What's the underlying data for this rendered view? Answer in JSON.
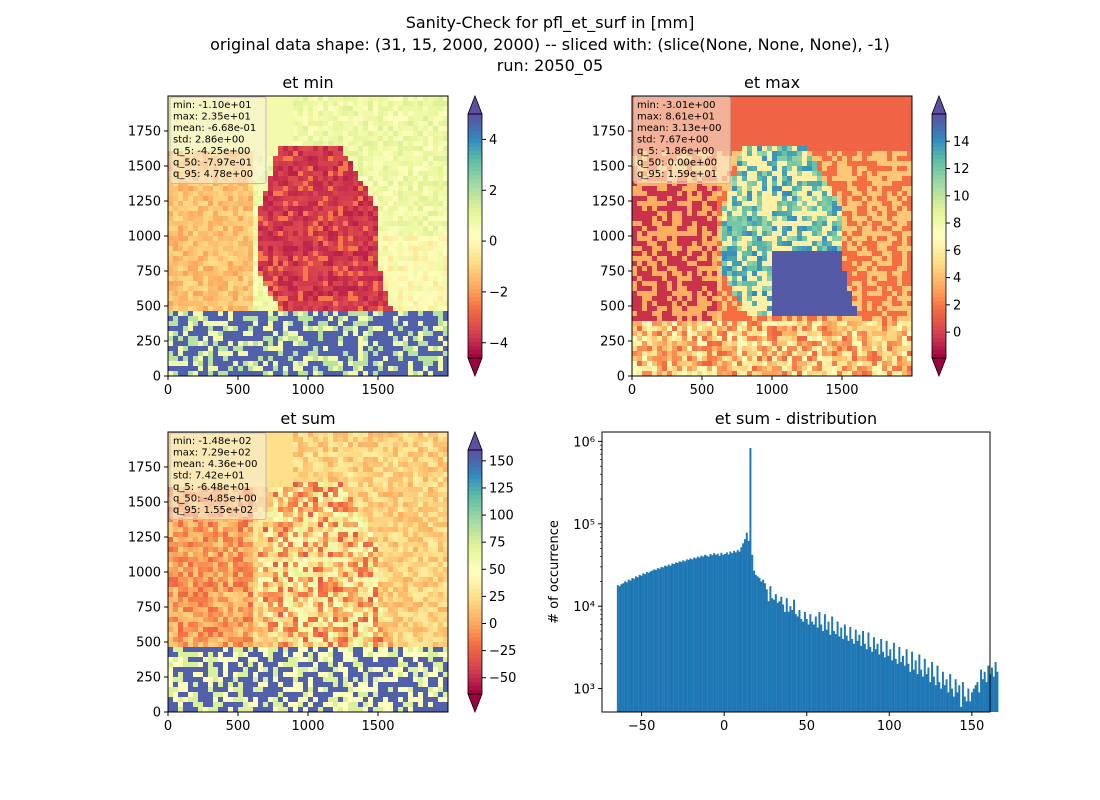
{
  "figure": {
    "title_lines": [
      "Sanity-Check for pfl_et_surf in [mm]",
      "original data shape: (31, 15, 2000, 2000) -- sliced with: (slice(None, None, None), -1)",
      "run: 2050_05"
    ]
  },
  "colors": {
    "colormap": "Spectral",
    "histogram_bar": "#1f77b4",
    "stats_box_bg": "#f5f0dc"
  },
  "chart_data": [
    {
      "type": "heatmap",
      "title": "et min",
      "x_ticks": [
        0,
        500,
        1000,
        1500
      ],
      "y_ticks": [
        0,
        250,
        500,
        750,
        1000,
        1250,
        1500,
        1750
      ],
      "xlim": [
        0,
        2000
      ],
      "ylim": [
        0,
        2000
      ],
      "colorbar": {
        "vmin": -4.6,
        "vmax": 5.0,
        "ticks": [
          -4,
          -2,
          0,
          2,
          4
        ],
        "tick_labels": [
          "−4",
          "−2",
          "0",
          "2",
          "4"
        ],
        "extend": "both"
      },
      "stats": [
        "min: -1.10e+01",
        "max: 2.35e+01",
        "mean: -6.68e-01",
        "std: 2.86e+00",
        "q_5: -4.25e+00",
        "q_50: -7.97e-01",
        "q_95: 4.78e+00"
      ]
    },
    {
      "type": "heatmap",
      "title": "et max",
      "x_ticks": [
        0,
        500,
        1000,
        1500
      ],
      "y_ticks": [
        0,
        250,
        500,
        750,
        1000,
        1250,
        1500,
        1750
      ],
      "xlim": [
        0,
        2000
      ],
      "ylim": [
        0,
        2000
      ],
      "colorbar": {
        "vmin": -1.9,
        "vmax": 16.0,
        "ticks": [
          0,
          2,
          4,
          6,
          8,
          10,
          12,
          14
        ],
        "tick_labels": [
          "0",
          "2",
          "4",
          "6",
          "8",
          "10",
          "12",
          "14"
        ],
        "extend": "both"
      },
      "stats": [
        "min: -3.01e+00",
        "max: 8.61e+01",
        "mean: 3.13e+00",
        "std: 7.67e+00",
        "q_5: -1.86e+00",
        "q_50: 0.00e+00",
        "q_95: 1.59e+01"
      ]
    },
    {
      "type": "heatmap",
      "title": "et sum",
      "x_ticks": [
        0,
        500,
        1000,
        1500
      ],
      "y_ticks": [
        0,
        250,
        500,
        750,
        1000,
        1250,
        1500,
        1750
      ],
      "xlim": [
        0,
        2000
      ],
      "ylim": [
        0,
        2000
      ],
      "colorbar": {
        "vmin": -65,
        "vmax": 160,
        "ticks": [
          -50,
          -25,
          0,
          25,
          50,
          75,
          100,
          125,
          150
        ],
        "tick_labels": [
          "−50",
          "−25",
          "0",
          "25",
          "50",
          "75",
          "100",
          "125",
          "150"
        ],
        "extend": "both"
      },
      "stats": [
        "min: -1.48e+02",
        "max: 7.29e+02",
        "mean: 4.36e+00",
        "std: 7.42e+01",
        "q_5: -6.48e+01",
        "q_50: -4.85e+00",
        "q_95: 1.55e+02"
      ]
    },
    {
      "type": "bar",
      "title": "et sum - distribution",
      "xlabel": "",
      "ylabel": "# of occurrence",
      "yscale": "log",
      "xlim": [
        -74,
        161
      ],
      "ylim": [
        520,
        1300000
      ],
      "x_ticks": [
        -50,
        0,
        50,
        100,
        150
      ],
      "x_tick_labels": [
        "−50",
        "0",
        "50",
        "100",
        "150"
      ],
      "y_ticks": [
        1000,
        10000,
        100000,
        1000000
      ],
      "y_tick_labels": [
        "10³",
        "10⁴",
        "10⁵",
        "10⁶"
      ],
      "bin_start": -65,
      "bin_width": 1.1,
      "bins": 200,
      "values": [
        18000,
        17500,
        18500,
        19000,
        20000,
        19500,
        21000,
        20500,
        22000,
        21500,
        23000,
        22500,
        24000,
        23500,
        25000,
        24500,
        26000,
        25500,
        26500,
        27000,
        28000,
        27500,
        29000,
        28500,
        30000,
        29500,
        31000,
        30500,
        32000,
        31000,
        33000,
        32500,
        34000,
        33500,
        35000,
        34500,
        36000,
        35000,
        37000,
        36500,
        38000,
        37000,
        39000,
        38000,
        40000,
        39000,
        41000,
        40000,
        42000,
        41000,
        40000,
        43000,
        41500,
        44000,
        42000,
        43500,
        41000,
        44500,
        42000,
        43000,
        45000,
        42500,
        46000,
        44000,
        47000,
        45000,
        48000,
        46000,
        52000,
        58000,
        65000,
        78000,
        62000,
        830000,
        42000,
        27000,
        24000,
        23000,
        22000,
        20000,
        21000,
        19000,
        16000,
        11500,
        17500,
        12500,
        12000,
        14000,
        11000,
        11500,
        13000,
        10500,
        8500,
        12500,
        8600,
        10000,
        9000,
        12000,
        8000,
        7500,
        9000,
        7000,
        6500,
        8500,
        7000,
        6000,
        8000,
        6500,
        6000,
        7500,
        5500,
        8500,
        6000,
        5000,
        8000,
        5200,
        6500,
        4500,
        7500,
        5000,
        4600,
        6500,
        4300,
        5500,
        4000,
        6000,
        4400,
        3800,
        5600,
        4000,
        3500,
        5200,
        3800,
        4500,
        3300,
        5000,
        3500,
        3000,
        4800,
        3200,
        2800,
        4200,
        3000,
        3500,
        2600,
        4000,
        2800,
        2400,
        3800,
        2500,
        3000,
        2200,
        3600,
        2300,
        2000,
        3200,
        2100,
        2500,
        1900,
        3000,
        2000,
        1600,
        2800,
        1700,
        2200,
        1500,
        2600,
        1700,
        1400,
        2300,
        1500,
        1800,
        1200,
        2100,
        1400,
        1100,
        1900,
        1200,
        1000,
        1600,
        1100,
        1300,
        900,
        1500,
        1000,
        800,
        1300,
        900,
        1100,
        600,
        1200,
        800,
        700,
        1000,
        700,
        900,
        1000,
        1100,
        1200,
        900,
        1700,
        1300,
        1600,
        1200,
        1900,
        1500,
        1800,
        1400,
        2100,
        1600
      ]
    }
  ]
}
